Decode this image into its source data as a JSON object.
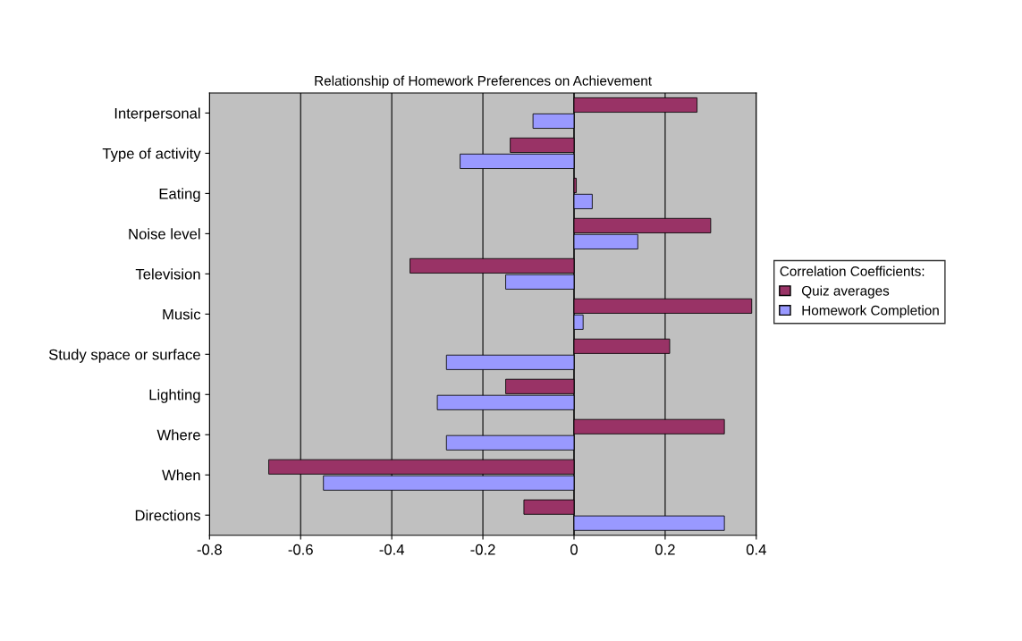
{
  "chart_data": {
    "type": "bar",
    "orientation": "horizontal",
    "title": "Relationship of Homework Preferences on Achievement",
    "categories": [
      "Interpersonal",
      "Type of activity",
      "Eating",
      "Noise level",
      "Television",
      "Music",
      "Study space or surface",
      "Lighting",
      "Where",
      "When",
      "Directions"
    ],
    "series": [
      {
        "name": "Quiz averages",
        "color": "#993366",
        "values": [
          0.27,
          -0.14,
          0.005,
          0.3,
          -0.36,
          0.39,
          0.21,
          -0.15,
          0.33,
          -0.67,
          -0.11
        ]
      },
      {
        "name": "Homework Completion",
        "color": "#9999ff",
        "values": [
          -0.09,
          -0.25,
          0.04,
          0.14,
          -0.15,
          0.02,
          -0.28,
          -0.3,
          -0.28,
          -0.55,
          0.33
        ]
      }
    ],
    "xlim": [
      -0.8,
      0.4
    ],
    "xticks": [
      -0.8,
      -0.6,
      -0.4,
      -0.2,
      0,
      0.2,
      0.4
    ],
    "grid": "x",
    "legend": "right",
    "legend_title": "Correlation Coefficients:"
  }
}
